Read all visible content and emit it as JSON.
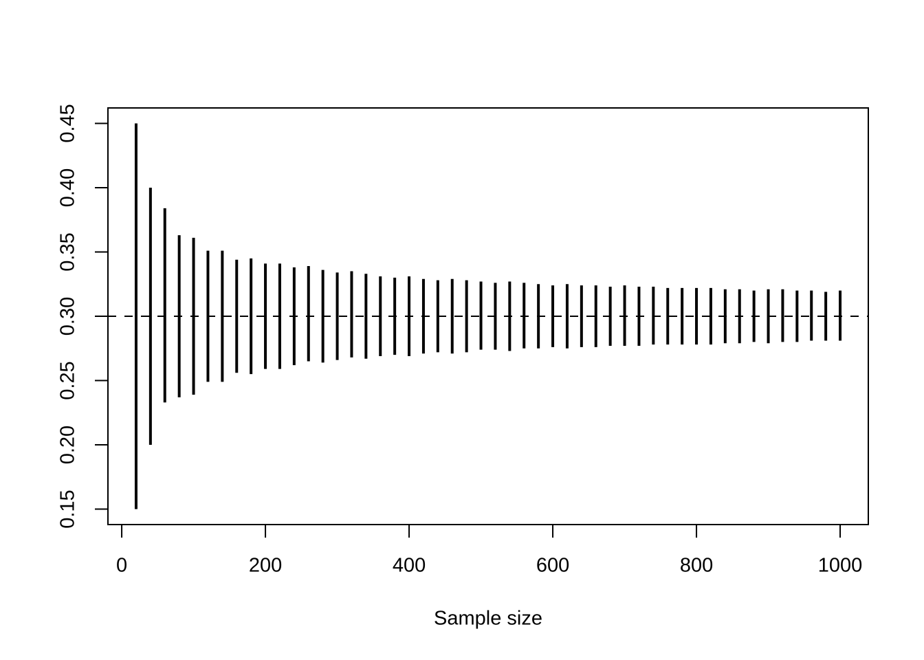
{
  "chart_data": {
    "type": "range",
    "x_label": "Sample size",
    "x": [
      20,
      40,
      60,
      80,
      100,
      120,
      140,
      160,
      180,
      200,
      220,
      240,
      260,
      280,
      300,
      320,
      340,
      360,
      380,
      400,
      420,
      440,
      460,
      480,
      500,
      520,
      540,
      560,
      580,
      600,
      620,
      640,
      660,
      680,
      700,
      720,
      740,
      760,
      780,
      800,
      820,
      840,
      860,
      880,
      900,
      920,
      940,
      960,
      980,
      1000
    ],
    "high": [
      0.45,
      0.4,
      0.384,
      0.363,
      0.361,
      0.351,
      0.351,
      0.344,
      0.345,
      0.341,
      0.341,
      0.338,
      0.339,
      0.336,
      0.334,
      0.335,
      0.333,
      0.331,
      0.33,
      0.331,
      0.329,
      0.328,
      0.329,
      0.328,
      0.327,
      0.326,
      0.327,
      0.326,
      0.325,
      0.324,
      0.325,
      0.324,
      0.324,
      0.323,
      0.324,
      0.323,
      0.323,
      0.322,
      0.322,
      0.322,
      0.322,
      0.321,
      0.321,
      0.32,
      0.321,
      0.321,
      0.32,
      0.32,
      0.319,
      0.32
    ],
    "low": [
      0.15,
      0.2,
      0.233,
      0.237,
      0.239,
      0.249,
      0.249,
      0.256,
      0.255,
      0.259,
      0.259,
      0.262,
      0.265,
      0.264,
      0.266,
      0.268,
      0.267,
      0.269,
      0.27,
      0.269,
      0.271,
      0.272,
      0.271,
      0.272,
      0.274,
      0.274,
      0.273,
      0.275,
      0.275,
      0.276,
      0.275,
      0.276,
      0.276,
      0.277,
      0.277,
      0.277,
      0.278,
      0.278,
      0.278,
      0.278,
      0.278,
      0.279,
      0.279,
      0.28,
      0.279,
      0.28,
      0.28,
      0.281,
      0.281,
      0.281
    ],
    "color": "#000000",
    "hline": 0.3,
    "xlim": [
      -19.2,
      1039.2
    ],
    "ylim": [
      0.138,
      0.462
    ],
    "xticks": [
      0,
      200,
      400,
      600,
      800,
      1000
    ],
    "yticks": [
      0.15,
      {
        "value": 0.2,
        "label": "0.20"
      },
      0.25,
      {
        "value": 0.3,
        "label": "0.30"
      },
      0.35,
      {
        "value": 0.4,
        "label": "0.40"
      },
      0.45
    ]
  }
}
